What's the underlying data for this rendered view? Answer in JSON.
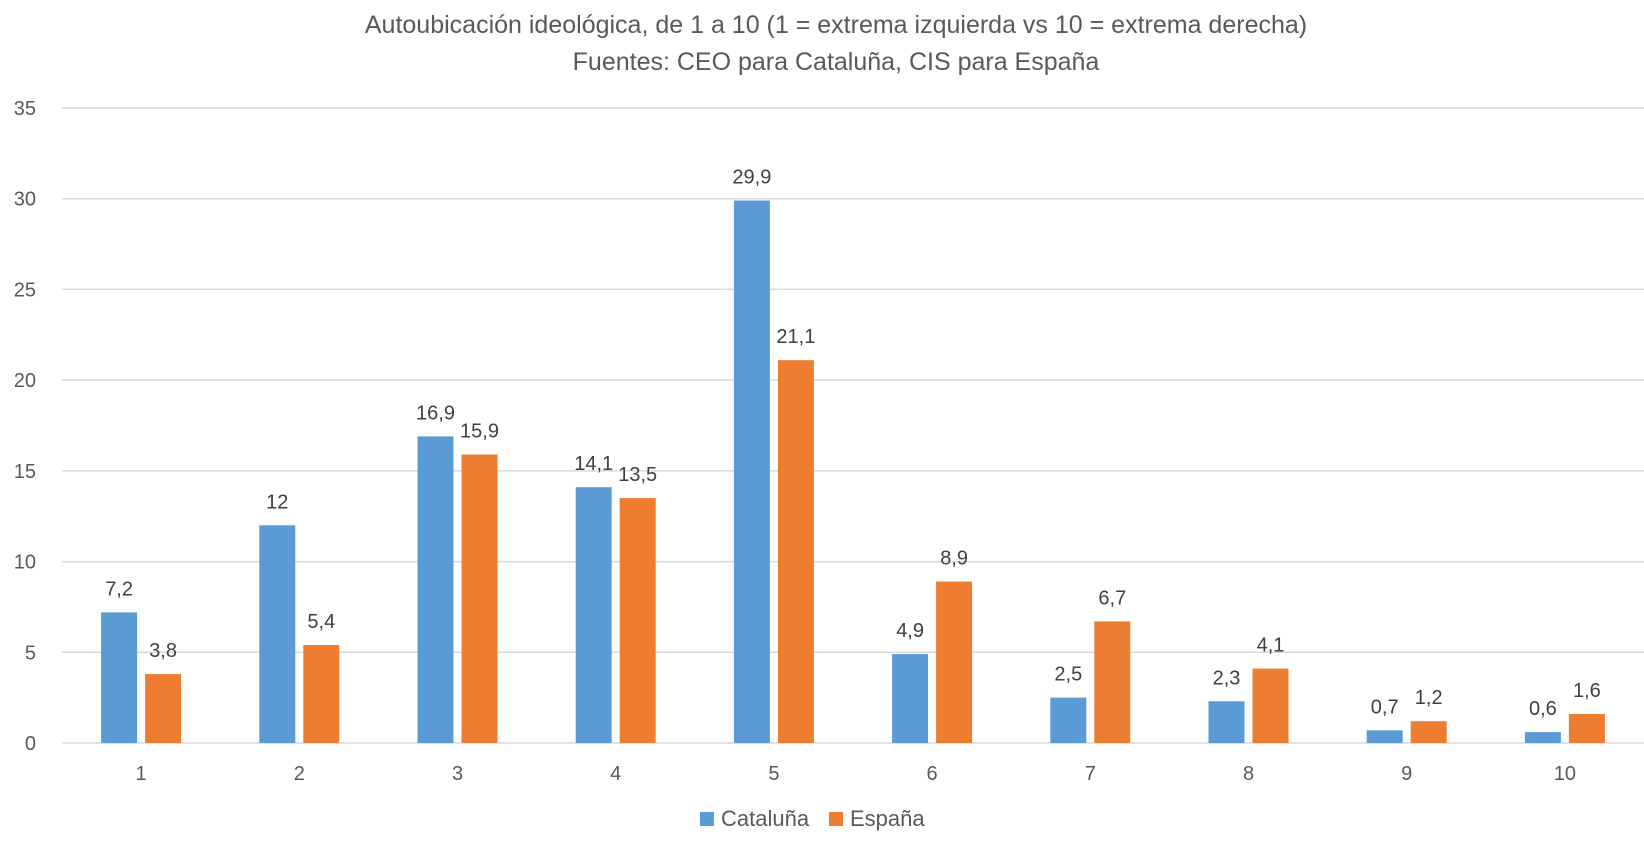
{
  "chart_data": {
    "type": "bar",
    "title": "Autoubicación ideológica, de 1 a 10 (1 = extrema izquierda vs 10 = extrema derecha)",
    "subtitle": "Fuentes: CEO para Cataluña, CIS para España",
    "xlabel": "",
    "ylabel": "",
    "categories": [
      "1",
      "2",
      "3",
      "4",
      "5",
      "6",
      "7",
      "8",
      "9",
      "10"
    ],
    "ylim": [
      0,
      35
    ],
    "yticks": [
      "0",
      "5",
      "10",
      "15",
      "20",
      "25",
      "30",
      "35"
    ],
    "grid": true,
    "legend_position": "bottom",
    "series": [
      {
        "name": "Cataluña",
        "color": "#5b9bd5",
        "values": [
          7.2,
          12,
          16.9,
          14.1,
          29.9,
          4.9,
          2.5,
          2.3,
          0.7,
          0.6
        ],
        "labels": [
          "7,2",
          "12",
          "16,9",
          "14,1",
          "29,9",
          "4,9",
          "2,5",
          "2,3",
          "0,7",
          "0,6"
        ]
      },
      {
        "name": "España",
        "color": "#ed7d31",
        "values": [
          3.8,
          5.4,
          15.9,
          13.5,
          21.1,
          8.9,
          6.7,
          4.1,
          1.2,
          1.6
        ],
        "labels": [
          "3,8",
          "5,4",
          "15,9",
          "13,5",
          "21,1",
          "8,9",
          "6,7",
          "4,1",
          "1,2",
          "1,6"
        ]
      }
    ]
  }
}
